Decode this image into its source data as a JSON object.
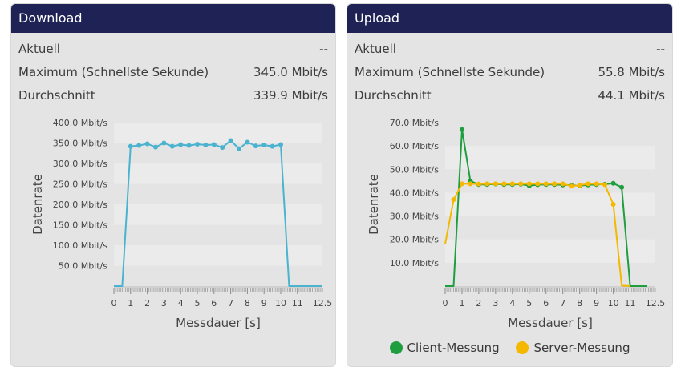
{
  "download": {
    "title": "Download",
    "stats": [
      {
        "label": "Aktuell",
        "value": "--"
      },
      {
        "label": "Maximum (Schnellste Sekunde)",
        "value": "345.0 Mbit/s"
      },
      {
        "label": "Durchschnitt",
        "value": "339.9 Mbit/s"
      }
    ]
  },
  "upload": {
    "title": "Upload",
    "stats": [
      {
        "label": "Aktuell",
        "value": "--"
      },
      {
        "label": "Maximum (Schnellste Sekunde)",
        "value": "55.8 Mbit/s"
      },
      {
        "label": "Durchschnitt",
        "value": "44.1 Mbit/s"
      }
    ],
    "legend": [
      {
        "name": "Client-Messung",
        "color": "#1e9e3e"
      },
      {
        "name": "Server-Messung",
        "color": "#f5b800"
      }
    ]
  },
  "chart_data": [
    {
      "type": "line",
      "xlabel": "Messdauer [s]",
      "ylabel": "Datenrate",
      "xlim": [
        0,
        12.5
      ],
      "ylim": [
        0,
        400
      ],
      "xticks": [
        "0",
        "1",
        "2",
        "3",
        "4",
        "5",
        "6",
        "7",
        "8",
        "9",
        "10",
        "11",
        "12.5"
      ],
      "yticks": [
        "50.0 Mbit/s",
        "100.0 Mbit/s",
        "150.0 Mbit/s",
        "200.0 Mbit/s",
        "250.0 Mbit/s",
        "300.0 Mbit/s",
        "350.0 Mbit/s",
        "400.0 Mbit/s"
      ],
      "series": [
        {
          "color": "#4ab3cf",
          "x": [
            0,
            0.5,
            1,
            1.5,
            2,
            2.5,
            3,
            3.5,
            4,
            4.5,
            5,
            5.5,
            6,
            6.5,
            7,
            7.5,
            8,
            8.5,
            9,
            9.5,
            10,
            10.5,
            11,
            11.5,
            12,
            12.5
          ],
          "y": [
            0,
            0,
            342,
            344,
            348,
            340,
            350,
            342,
            346,
            344,
            347,
            345,
            346,
            339,
            356,
            336,
            352,
            343,
            345,
            342,
            346,
            0,
            0,
            0,
            0,
            0
          ],
          "markers": [
            false,
            false,
            true,
            true,
            true,
            true,
            true,
            true,
            true,
            true,
            true,
            true,
            true,
            true,
            true,
            true,
            true,
            true,
            true,
            true,
            true,
            false,
            false,
            false,
            false,
            false
          ]
        }
      ],
      "grid": "horizontal bands",
      "legend": "none"
    },
    {
      "type": "line",
      "xlabel": "Messdauer [s]",
      "ylabel": "Datenrate",
      "xlim": [
        0,
        12.5
      ],
      "ylim": [
        0,
        70
      ],
      "xticks": [
        "0",
        "1",
        "2",
        "3",
        "4",
        "5",
        "6",
        "7",
        "8",
        "9",
        "10",
        "11",
        "12.5"
      ],
      "yticks": [
        "10.0 Mbit/s",
        "20.0 Mbit/s",
        "30.0 Mbit/s",
        "40.0 Mbit/s",
        "50.0 Mbit/s",
        "60.0 Mbit/s",
        "70.0 Mbit/s"
      ],
      "series": [
        {
          "name": "Client-Messung",
          "color": "#1e9e3e",
          "x": [
            0,
            0.5,
            1,
            1.5,
            2,
            2.5,
            3,
            3.5,
            4,
            4.5,
            5,
            5.5,
            6,
            6.5,
            7,
            7.5,
            8,
            8.5,
            9,
            9.5,
            10,
            10.5,
            11,
            11.5,
            12
          ],
          "y": [
            0,
            0,
            67,
            45,
            43.5,
            43.5,
            43.7,
            43.5,
            43.5,
            43.6,
            43.0,
            43.4,
            43.5,
            43.5,
            43.3,
            43.2,
            43.0,
            43.3,
            43.5,
            43.6,
            44,
            42.3,
            0,
            0,
            0
          ],
          "markers": [
            false,
            false,
            true,
            true,
            true,
            true,
            true,
            true,
            true,
            true,
            true,
            true,
            true,
            true,
            true,
            true,
            true,
            true,
            true,
            true,
            true,
            true,
            false,
            false,
            false
          ]
        },
        {
          "name": "Server-Messung",
          "color": "#f5b800",
          "x": [
            0,
            0.5,
            1,
            1.5,
            2,
            2.5,
            3,
            3.5,
            4,
            4.5,
            5,
            5.5,
            6,
            6.5,
            7,
            7.5,
            8,
            8.5,
            9,
            9.5,
            10,
            10.5,
            11
          ],
          "y": [
            18,
            37,
            43.8,
            43.8,
            43.7,
            43.8,
            43.8,
            43.8,
            43.8,
            43.8,
            43.8,
            43.8,
            43.8,
            43.8,
            43.8,
            42.8,
            43.2,
            43.8,
            43.8,
            43.4,
            35,
            0.2,
            0
          ],
          "markers": [
            false,
            true,
            true,
            true,
            true,
            true,
            true,
            true,
            true,
            true,
            true,
            true,
            true,
            true,
            true,
            true,
            true,
            true,
            true,
            true,
            true,
            false,
            false
          ]
        }
      ],
      "grid": "horizontal bands",
      "legend": "bottom-center"
    }
  ]
}
